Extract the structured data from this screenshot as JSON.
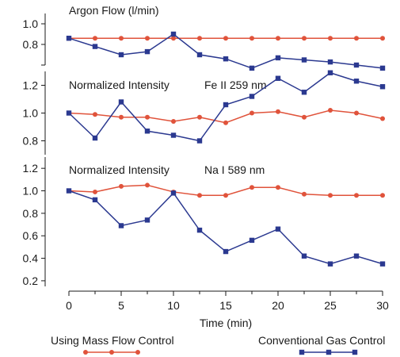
{
  "chart_data": [
    {
      "type": "line",
      "title": "Argon Flow (l/min)",
      "subtitle": "",
      "x": [
        0,
        2.5,
        5,
        7.5,
        10,
        12.5,
        15,
        17.5,
        20,
        22.5,
        25,
        27.5,
        30
      ],
      "ylim": [
        0.6,
        1.1
      ],
      "yticks": [
        0.8,
        1.0
      ],
      "minor_yticks": [
        0.6
      ],
      "series": [
        {
          "name": "Using Mass Flow Control",
          "values": [
            0.86,
            0.86,
            0.86,
            0.86,
            0.86,
            0.86,
            0.86,
            0.86,
            0.86,
            0.86,
            0.86,
            0.86,
            0.86
          ]
        },
        {
          "name": "Conventional Gas Control",
          "values": [
            0.86,
            0.78,
            0.7,
            0.73,
            0.9,
            0.7,
            0.66,
            0.57,
            0.67,
            0.65,
            0.63,
            0.6,
            0.57
          ]
        }
      ]
    },
    {
      "type": "line",
      "title": "Normalized Intensity",
      "subtitle": "Fe II 259 nm",
      "x": [
        0,
        2.5,
        5,
        7.5,
        10,
        12.5,
        15,
        17.5,
        20,
        22.5,
        25,
        27.5,
        30
      ],
      "ylim": [
        0.7,
        1.3
      ],
      "yticks": [
        0.8,
        1.0,
        1.2
      ],
      "minor_yticks": [],
      "series": [
        {
          "name": "Using Mass Flow Control",
          "values": [
            1.0,
            0.99,
            0.97,
            0.97,
            0.94,
            0.97,
            0.93,
            1.0,
            1.01,
            0.97,
            1.02,
            1.0,
            0.96
          ]
        },
        {
          "name": "Conventional Gas Control",
          "values": [
            1.0,
            0.82,
            1.08,
            0.87,
            0.84,
            0.8,
            1.06,
            1.12,
            1.25,
            1.15,
            1.29,
            1.23,
            1.19
          ]
        }
      ]
    },
    {
      "type": "line",
      "title": "Normalized Intensity",
      "subtitle": "Na I 589 nm",
      "x": [
        0,
        2.5,
        5,
        7.5,
        10,
        12.5,
        15,
        17.5,
        20,
        22.5,
        25,
        27.5,
        30
      ],
      "ylim": [
        0.15,
        1.3
      ],
      "yticks": [
        0.2,
        0.4,
        0.6,
        0.8,
        1.0,
        1.2
      ],
      "minor_yticks": [],
      "series": [
        {
          "name": "Using Mass Flow Control",
          "values": [
            1.0,
            0.99,
            1.04,
            1.05,
            0.99,
            0.96,
            0.96,
            1.03,
            1.03,
            0.97,
            0.96,
            0.96,
            0.96
          ]
        },
        {
          "name": "Conventional Gas Control",
          "values": [
            1.0,
            0.92,
            0.69,
            0.74,
            0.98,
            0.65,
            0.46,
            0.56,
            0.66,
            0.42,
            0.35,
            0.42,
            0.35
          ]
        }
      ]
    }
  ],
  "x_axis": {
    "label": "Time (min)",
    "ticks": [
      0,
      5,
      10,
      15,
      20,
      25,
      30
    ],
    "minor_ticks": [
      2.5,
      7.5,
      12.5,
      17.5,
      22.5,
      27.5
    ],
    "range": [
      0,
      30
    ]
  },
  "legend": {
    "placement": "bottom",
    "entries": [
      {
        "label": "Using Mass Flow Control",
        "color": "#e0533b",
        "marker": "circle"
      },
      {
        "label": "Conventional Gas Control",
        "color": "#2b3990",
        "marker": "square"
      }
    ]
  },
  "colors": {
    "mass_flow": "#e0533b",
    "conventional": "#2b3990",
    "axis": "#1a1a1a"
  }
}
